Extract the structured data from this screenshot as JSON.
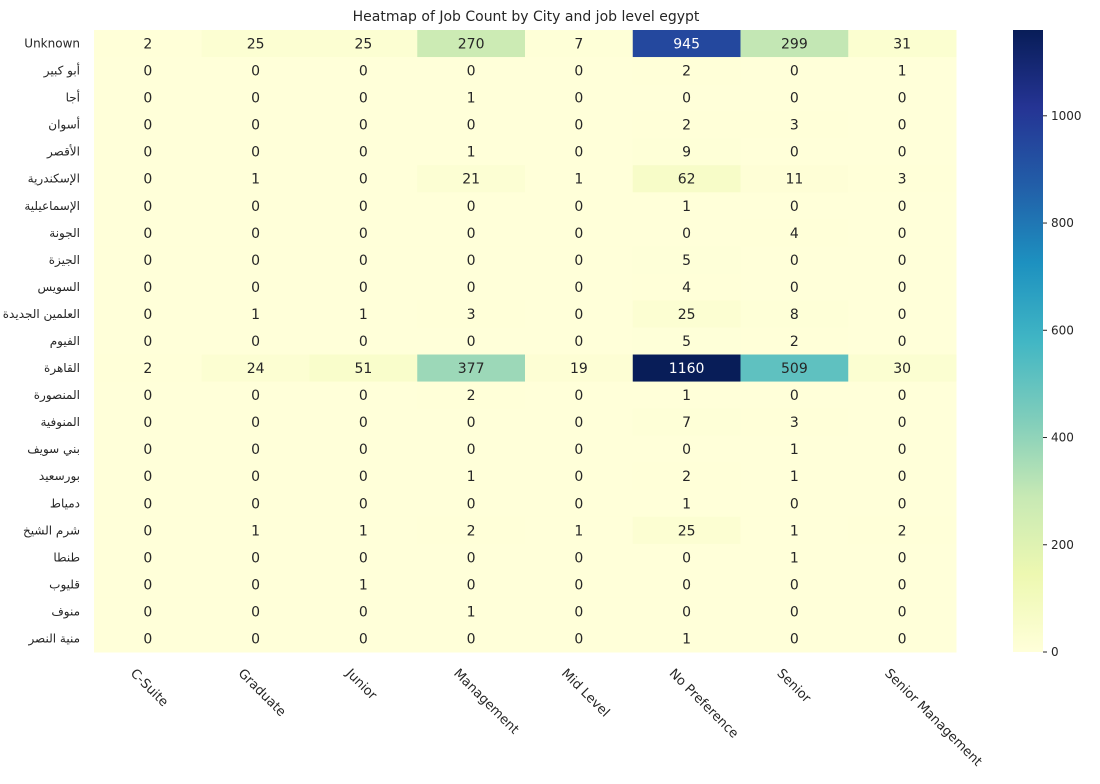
{
  "chart_data": {
    "type": "heatmap",
    "title": "Heatmap of Job Count by City and job level egypt",
    "xlabel": "",
    "ylabel": "",
    "x_categories": [
      "C-Suite",
      "Graduate",
      "Junior",
      "Management",
      "Mid Level",
      "No Preference",
      "Senior",
      "Senior Management"
    ],
    "y_categories": [
      "Unknown",
      "أبو كبير",
      "أجا",
      "أسوان",
      "الأقصر",
      "الإسكندرية",
      "الإسماعيلية",
      "الجونة",
      "الجيزة",
      "السويس",
      "العلمين الجديدة",
      "الفيوم",
      "القاهرة",
      "المنصورة",
      "المنوفية",
      "بني سويف",
      "بورسعيد",
      "دمياط",
      "شرم الشيخ",
      "طنطا",
      "قليوب",
      "منوف",
      "منية النصر"
    ],
    "values": [
      [
        2,
        25,
        25,
        270,
        7,
        945,
        299,
        31
      ],
      [
        0,
        0,
        0,
        0,
        0,
        2,
        0,
        1
      ],
      [
        0,
        0,
        0,
        1,
        0,
        0,
        0,
        0
      ],
      [
        0,
        0,
        0,
        0,
        0,
        2,
        3,
        0
      ],
      [
        0,
        0,
        0,
        1,
        0,
        9,
        0,
        0
      ],
      [
        0,
        1,
        0,
        21,
        1,
        62,
        11,
        3
      ],
      [
        0,
        0,
        0,
        0,
        0,
        1,
        0,
        0
      ],
      [
        0,
        0,
        0,
        0,
        0,
        0,
        4,
        0
      ],
      [
        0,
        0,
        0,
        0,
        0,
        5,
        0,
        0
      ],
      [
        0,
        0,
        0,
        0,
        0,
        4,
        0,
        0
      ],
      [
        0,
        1,
        1,
        3,
        0,
        25,
        8,
        0
      ],
      [
        0,
        0,
        0,
        0,
        0,
        5,
        2,
        0
      ],
      [
        2,
        24,
        51,
        377,
        19,
        1160,
        509,
        30
      ],
      [
        0,
        0,
        0,
        2,
        0,
        1,
        0,
        0
      ],
      [
        0,
        0,
        0,
        0,
        0,
        7,
        3,
        0
      ],
      [
        0,
        0,
        0,
        0,
        0,
        0,
        1,
        0
      ],
      [
        0,
        0,
        0,
        1,
        0,
        2,
        1,
        0
      ],
      [
        0,
        0,
        0,
        0,
        0,
        1,
        0,
        0
      ],
      [
        0,
        1,
        1,
        2,
        1,
        25,
        1,
        2
      ],
      [
        0,
        0,
        0,
        0,
        0,
        0,
        1,
        0
      ],
      [
        0,
        0,
        1,
        0,
        0,
        0,
        0,
        0
      ],
      [
        0,
        0,
        0,
        1,
        0,
        0,
        0,
        0
      ],
      [
        0,
        0,
        0,
        0,
        0,
        1,
        0,
        0
      ]
    ],
    "vmin": 0,
    "vmax": 1160,
    "colormap": "YlGnBu",
    "colormap_stops": [
      "#ffffd9",
      "#edf8b1",
      "#c7e9b4",
      "#7fcdbb",
      "#41b6c4",
      "#1d91c0",
      "#225ea8",
      "#253494",
      "#081d58"
    ],
    "colorbar_ticks": [
      0,
      200,
      400,
      600,
      800,
      1000
    ],
    "annotations": true,
    "grid": false
  }
}
